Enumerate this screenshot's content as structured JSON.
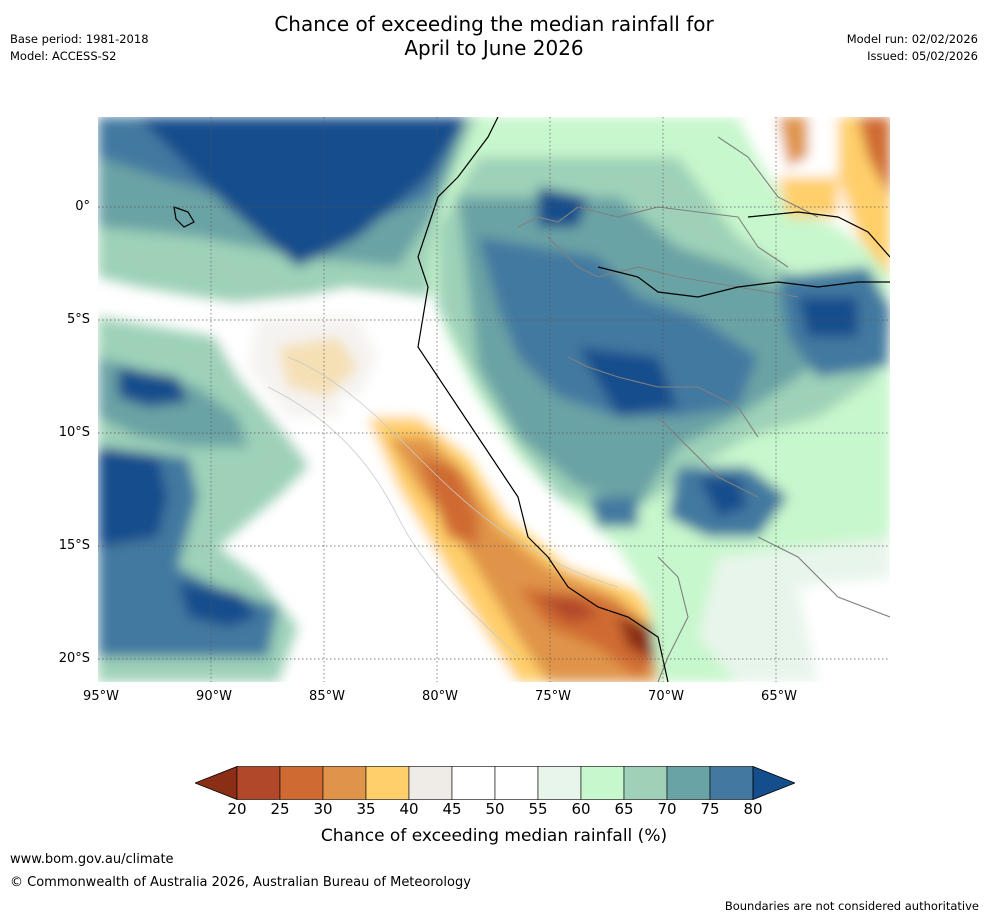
{
  "title": {
    "line1": "Chance of exceeding the median rainfall for",
    "line2": "April to June 2026"
  },
  "meta_left": {
    "base_period": "Base period: 1981-2018",
    "model": "Model: ACCESS-S2"
  },
  "meta_right": {
    "model_run": "Model run: 02/02/2026",
    "issued": "Issued: 05/02/2026"
  },
  "lat_labels": [
    "0°",
    "5°S",
    "10°S",
    "15°S",
    "20°S"
  ],
  "lon_labels": [
    "95°W",
    "90°W",
    "85°W",
    "80°W",
    "75°W",
    "70°W",
    "65°W"
  ],
  "colorbar": {
    "ticks": [
      "20",
      "25",
      "30",
      "35",
      "40",
      "45",
      "50",
      "55",
      "60",
      "65",
      "70",
      "75",
      "80"
    ],
    "colors": [
      "#8b2e16",
      "#b2482a",
      "#cf6a32",
      "#e0944a",
      "#ffcf6a",
      "#efebe7",
      "#ffffff",
      "#ffffff",
      "#e8f5eb",
      "#c7f7cc",
      "#9ed1b8",
      "#6aa3a5",
      "#4379a0",
      "#144e8c"
    ],
    "title": "Chance of exceeding median rainfall (%)"
  },
  "footer": {
    "url": "www.bom.gov.au/climate",
    "copyright": "© Commonwealth of Australia 2026, Australian Bureau of Meteorology",
    "disclaimer": "Boundaries are not considered authoritative"
  }
}
